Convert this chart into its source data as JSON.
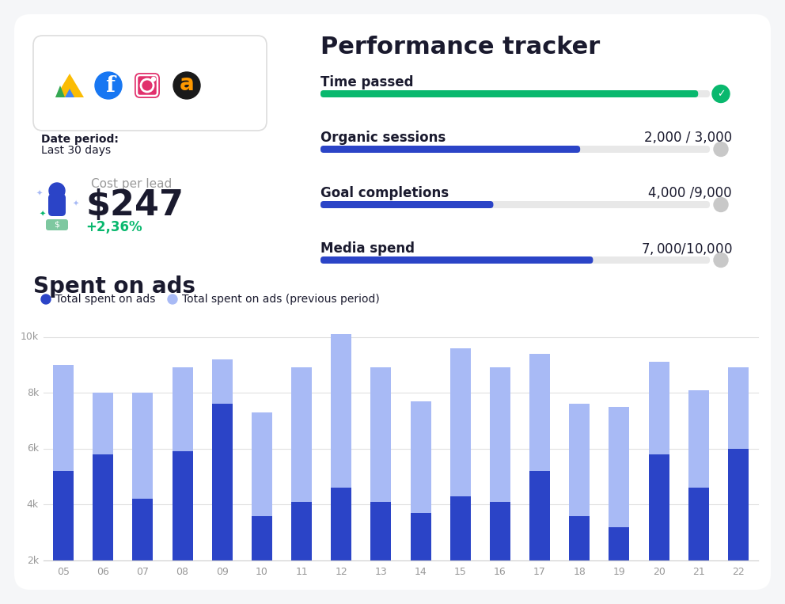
{
  "bg_color": "#f5f6f8",
  "card_color": "#ffffff",
  "text_dark": "#1a1a2e",
  "text_gray": "#999999",
  "green_color": "#09b86e",
  "blue_bar": "#2b44c7",
  "blue_light": "#a8baf5",
  "progress_bg": "#e8e8e8",
  "date_label": "Date period:",
  "date_value": "Last 30 days",
  "cost_per_lead_label": "Cost per lead",
  "cost_per_lead_value": "$247",
  "cost_per_lead_change": "+2,36%",
  "perf_title": "Performance tracker",
  "perf_items": [
    {
      "label": "Time passed",
      "value_text": "",
      "progress": 0.97,
      "color": "#09b86e",
      "complete": true
    },
    {
      "label": "Organic sessions",
      "value_text": "2,000 / 3,000",
      "progress": 0.667,
      "color": "#2b44c7",
      "complete": false
    },
    {
      "label": "Goal completions",
      "value_text": "4,000 /9,000",
      "progress": 0.444,
      "color": "#2b44c7",
      "complete": false
    },
    {
      "label": "Media spend",
      "value_text": "$7,000 / $10,000",
      "progress": 0.7,
      "color": "#2b44c7",
      "complete": false
    }
  ],
  "chart_title": "Spent on ads",
  "legend_label1": "Total spent on ads",
  "legend_label2": "Total spent on ads (previous period)",
  "bar_color1": "#2b44c7",
  "bar_color2": "#a8baf5",
  "categories": [
    "05",
    "06",
    "07",
    "08",
    "09",
    "10",
    "11",
    "12",
    "13",
    "14",
    "15",
    "16",
    "17",
    "18",
    "19",
    "20",
    "21",
    "22"
  ],
  "values_current": [
    5200,
    5800,
    4200,
    5900,
    7600,
    3600,
    4100,
    4600,
    4100,
    3700,
    4300,
    4100,
    5200,
    3600,
    3200,
    5800,
    4600,
    6000
  ],
  "values_prev": [
    3800,
    2200,
    3800,
    3000,
    1600,
    3700,
    4800,
    5500,
    4800,
    4000,
    5300,
    4800,
    4200,
    4000,
    4300,
    3300,
    3500,
    2900
  ],
  "ylim_min": 2000,
  "ylim_max": 10500,
  "yticks": [
    2000,
    4000,
    6000,
    8000,
    10000
  ],
  "ytick_labels": [
    "2k",
    "4k",
    "6k",
    "8k",
    "10k"
  ]
}
